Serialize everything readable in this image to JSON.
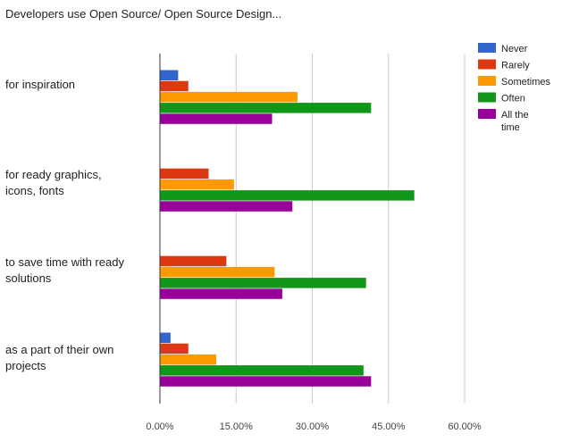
{
  "chart_data": {
    "type": "bar",
    "orientation": "horizontal",
    "title": "Developers use Open Source/ Open Source Design...",
    "categories": [
      [
        "for inspiration"
      ],
      [
        "for ready graphics,",
        "icons, fonts"
      ],
      [
        "to save time with ready",
        "solutions"
      ],
      [
        "as a part of their own",
        "projects"
      ]
    ],
    "series": [
      {
        "name": "Never",
        "color": "#3366cc",
        "values": [
          3.5,
          0,
          0,
          2.0
        ]
      },
      {
        "name": "Rarely",
        "color": "#dc3912",
        "values": [
          5.5,
          9.5,
          13.0,
          5.5
        ]
      },
      {
        "name": "Sometimes",
        "color": "#ff9900",
        "values": [
          27.0,
          14.5,
          22.5,
          11.0
        ]
      },
      {
        "name": "Often",
        "color": "#109618",
        "values": [
          41.5,
          50.0,
          40.5,
          40.0
        ]
      },
      {
        "name": "All the time",
        "color": "#990099",
        "values": [
          22.0,
          26.0,
          24.0,
          41.5
        ]
      }
    ],
    "xlim": [
      0,
      60
    ],
    "xticks": [
      {
        "value": 0,
        "label": "0.00%"
      },
      {
        "value": 15,
        "label": "15.00%"
      },
      {
        "value": 30,
        "label": "30.00%"
      },
      {
        "value": 45,
        "label": "45.00%"
      },
      {
        "value": 60,
        "label": "60.00%"
      }
    ],
    "grid": true,
    "legend_position": "right"
  }
}
